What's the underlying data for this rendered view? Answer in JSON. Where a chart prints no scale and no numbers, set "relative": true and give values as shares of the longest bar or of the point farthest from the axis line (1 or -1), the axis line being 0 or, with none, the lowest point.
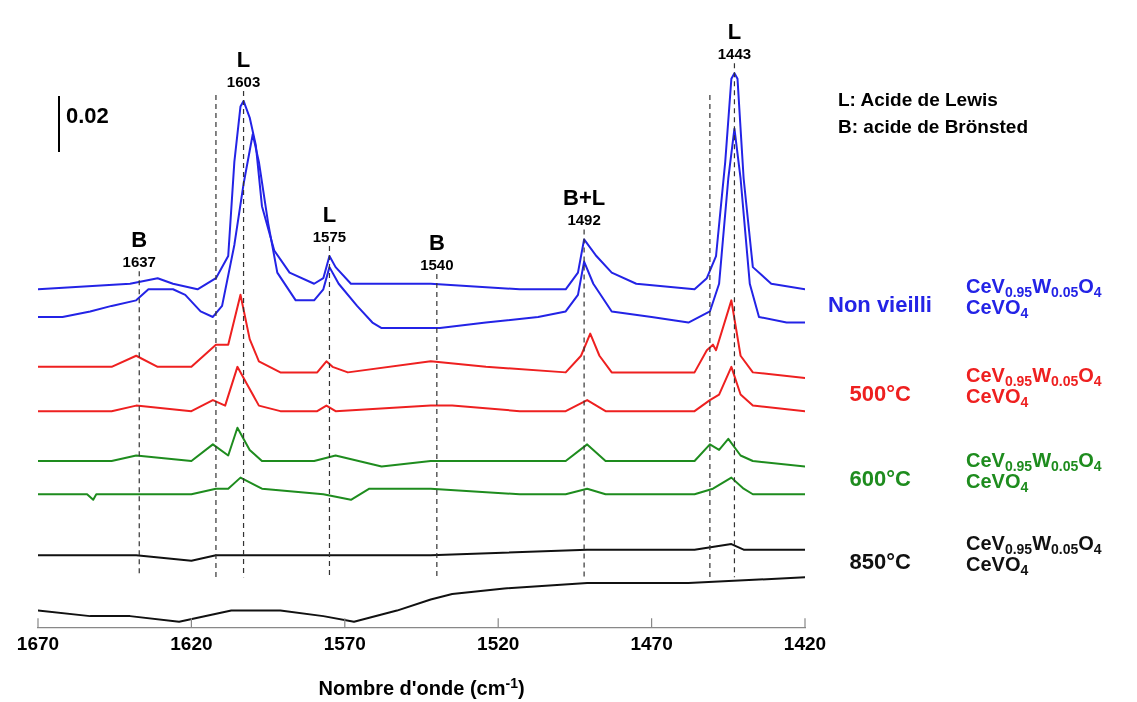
{
  "chart_data": {
    "type": "line",
    "xlabel": "Nombre d'onde (cm$^{-1}$)",
    "relative": true,
    "marker": "none",
    "line_style": "solid",
    "xlim": [
      1670,
      1420
    ],
    "xticks": [
      1670,
      1620,
      1570,
      1520,
      1470,
      1420
    ],
    "series": [
      {
        "name": "CeV$_{0.95}$W$_{0.05}$O$_{4}$",
        "color": "#2323e6",
        "x": [
          1670,
          1640,
          1631,
          1626,
          1618,
          1612,
          1608,
          1606,
          1604,
          1603,
          1601,
          1599,
          1597,
          1593,
          1588,
          1580,
          1577,
          1575,
          1573,
          1568,
          1558,
          1542,
          1513,
          1498,
          1494,
          1492,
          1488,
          1483,
          1475,
          1456,
          1452,
          1449,
          1446,
          1444,
          1443,
          1442,
          1440,
          1437,
          1431,
          1420
        ],
        "values": [
          0.61,
          0.62,
          0.63,
          0.62,
          0.61,
          0.63,
          0.67,
          0.84,
          0.94,
          0.95,
          0.92,
          0.87,
          0.76,
          0.68,
          0.64,
          0.62,
          0.63,
          0.67,
          0.65,
          0.62,
          0.62,
          0.62,
          0.61,
          0.61,
          0.64,
          0.7,
          0.67,
          0.64,
          0.62,
          0.61,
          0.63,
          0.67,
          0.84,
          0.99,
          1,
          0.99,
          0.81,
          0.65,
          0.62,
          0.61
        ]
      },
      {
        "name": "CeVO$_{4}$",
        "color": "#2323e6",
        "x": [
          1670,
          1662,
          1653,
          1646,
          1638,
          1634,
          1626,
          1622,
          1617,
          1613,
          1610,
          1606,
          1603,
          1601,
          1600,
          1598,
          1595,
          1592,
          1586,
          1580,
          1577,
          1575,
          1572,
          1566,
          1561,
          1558,
          1542,
          1539,
          1524,
          1507,
          1498,
          1494,
          1492,
          1489,
          1483,
          1470,
          1458,
          1451,
          1448,
          1445,
          1443,
          1441,
          1438,
          1435,
          1426,
          1420
        ],
        "values": [
          0.56,
          0.56,
          0.57,
          0.58,
          0.59,
          0.61,
          0.61,
          0.6,
          0.57,
          0.56,
          0.58,
          0.69,
          0.8,
          0.86,
          0.89,
          0.84,
          0.73,
          0.64,
          0.59,
          0.59,
          0.61,
          0.65,
          0.62,
          0.58,
          0.55,
          0.54,
          0.54,
          0.54,
          0.55,
          0.56,
          0.57,
          0.6,
          0.66,
          0.62,
          0.57,
          0.56,
          0.55,
          0.57,
          0.62,
          0.81,
          0.9,
          0.81,
          0.62,
          0.56,
          0.55,
          0.55
        ]
      },
      {
        "name": "CeV$_{0.95}$W$_{0.05}$O$_{4}$",
        "color": "#ee2020",
        "x": [
          1670,
          1646,
          1638,
          1631,
          1620,
          1612,
          1608,
          1604,
          1601,
          1598,
          1591,
          1579,
          1576,
          1574,
          1569,
          1542,
          1524,
          1498,
          1493,
          1490,
          1487,
          1483,
          1470,
          1456,
          1452,
          1450,
          1449,
          1444,
          1441,
          1437,
          1420
        ],
        "values": [
          0.47,
          0.47,
          0.49,
          0.47,
          0.47,
          0.51,
          0.51,
          0.6,
          0.52,
          0.48,
          0.46,
          0.46,
          0.48,
          0.47,
          0.46,
          0.48,
          0.47,
          0.46,
          0.49,
          0.53,
          0.49,
          0.46,
          0.46,
          0.46,
          0.5,
          0.51,
          0.5,
          0.59,
          0.49,
          0.46,
          0.45
        ]
      },
      {
        "name": "CeVO$_{4}$",
        "color": "#ee2020",
        "x": [
          1670,
          1646,
          1638,
          1620,
          1613,
          1609,
          1605,
          1602,
          1598,
          1591,
          1579,
          1576,
          1573,
          1542,
          1535,
          1513,
          1498,
          1491,
          1485,
          1470,
          1456,
          1451,
          1448,
          1444,
          1441,
          1437,
          1420
        ],
        "values": [
          0.39,
          0.39,
          0.4,
          0.39,
          0.41,
          0.4,
          0.47,
          0.44,
          0.4,
          0.39,
          0.39,
          0.4,
          0.39,
          0.4,
          0.4,
          0.39,
          0.39,
          0.41,
          0.39,
          0.39,
          0.39,
          0.41,
          0.42,
          0.47,
          0.42,
          0.4,
          0.39
        ]
      },
      {
        "name": "CeV$_{0.95}$W$_{0.05}$O$_{4}$",
        "color": "#1e8c1e",
        "x": [
          1670,
          1646,
          1638,
          1620,
          1613,
          1608,
          1605,
          1601,
          1597,
          1580,
          1573,
          1558,
          1542,
          1524,
          1498,
          1491,
          1485,
          1470,
          1456,
          1451,
          1448,
          1445,
          1441,
          1437,
          1420
        ],
        "values": [
          0.3,
          0.3,
          0.31,
          0.3,
          0.33,
          0.31,
          0.36,
          0.32,
          0.3,
          0.3,
          0.31,
          0.29,
          0.3,
          0.3,
          0.3,
          0.33,
          0.3,
          0.3,
          0.3,
          0.33,
          0.32,
          0.34,
          0.31,
          0.3,
          0.29
        ]
      },
      {
        "name": "CeVO$_{4}$",
        "color": "#1e8c1e",
        "x": [
          1670,
          1654,
          1652,
          1651,
          1638,
          1620,
          1612,
          1608,
          1604,
          1597,
          1577,
          1568,
          1562,
          1542,
          1513,
          1498,
          1491,
          1485,
          1456,
          1450,
          1444,
          1440,
          1437,
          1420
        ],
        "values": [
          0.24,
          0.24,
          0.23,
          0.24,
          0.24,
          0.24,
          0.25,
          0.25,
          0.27,
          0.25,
          0.24,
          0.23,
          0.25,
          0.25,
          0.24,
          0.24,
          0.25,
          0.24,
          0.24,
          0.25,
          0.27,
          0.25,
          0.24,
          0.24
        ]
      },
      {
        "name": "CeV$_{0.95}$W$_{0.05}$O$_{4}$",
        "color": "#111111",
        "x": [
          1670,
          1638,
          1620,
          1612,
          1604,
          1597,
          1564,
          1542,
          1491,
          1485,
          1456,
          1444,
          1440,
          1420
        ],
        "values": [
          0.13,
          0.13,
          0.12,
          0.13,
          0.13,
          0.13,
          0.13,
          0.13,
          0.14,
          0.14,
          0.14,
          0.15,
          0.14,
          0.14
        ]
      },
      {
        "name": "CeVO$_{4}$",
        "color": "#111111",
        "x": [
          1670,
          1653,
          1640,
          1624,
          1607,
          1591,
          1577,
          1567,
          1553,
          1542,
          1535,
          1518,
          1491,
          1458,
          1420
        ],
        "values": [
          0.03,
          0.02,
          0.02,
          0.01,
          0.03,
          0.03,
          0.02,
          0.01,
          0.03,
          0.05,
          0.06,
          0.07,
          0.08,
          0.08,
          0.09
        ]
      }
    ],
    "ref_lines": [
      {
        "axis": "x",
        "value": 1637,
        "label": "1637",
        "line_style": "dashed"
      },
      {
        "axis": "x",
        "value": 1612,
        "line_style": "dashed"
      },
      {
        "axis": "x",
        "value": 1603,
        "label": "1603",
        "line_style": "dashed"
      },
      {
        "axis": "x",
        "value": 1575,
        "label": "1575",
        "line_style": "dashed"
      },
      {
        "axis": "x",
        "value": 1540,
        "label": "1540",
        "line_style": "dashed"
      },
      {
        "axis": "x",
        "value": 1492,
        "label": "1492",
        "line_style": "dashed"
      },
      {
        "axis": "x",
        "value": 1451,
        "line_style": "dashed"
      },
      {
        "axis": "x",
        "value": 1443,
        "label": "1443",
        "line_style": "dashed"
      }
    ],
    "annotations": [
      "0.02",
      "L: Acide de Lewis",
      "B: acide de Brönsted",
      "B",
      "L",
      "L",
      "B",
      "B+L",
      "L",
      "Non vieilli",
      "500°C",
      "600°C",
      "850°C"
    ]
  }
}
